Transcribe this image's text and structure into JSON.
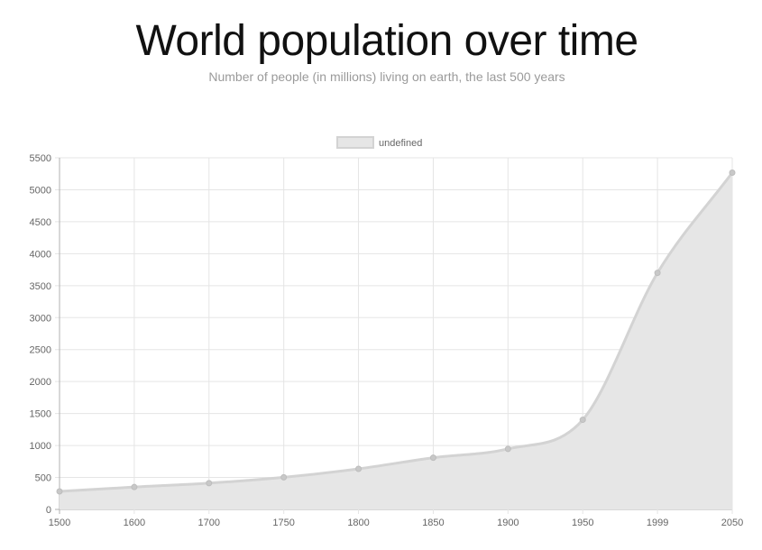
{
  "title": "World population over time",
  "subtitle": "Number of people (in millions) living on earth, the last 500 years",
  "chart_data": {
    "type": "area",
    "title": "World population over time",
    "subtitle": "Number of people (in millions) living on earth, the last 500 years",
    "categories": [
      "1500",
      "1600",
      "1700",
      "1750",
      "1800",
      "1850",
      "1900",
      "1950",
      "1999",
      "2050"
    ],
    "series": [
      {
        "name": "undefined",
        "values": [
          282,
          350,
          411,
          502,
          635,
          809,
          947,
          1402,
          3700,
          5267
        ]
      }
    ],
    "ylim": [
      0,
      5500
    ],
    "y_ticks": [
      0,
      500,
      1000,
      1500,
      2000,
      2500,
      3000,
      3500,
      4000,
      4500,
      5000,
      5500
    ],
    "grid": true,
    "legend": "top-center",
    "colors": {
      "fill": "#e6e6e6",
      "line": "#d3d3d3",
      "point": "#c8c8c8",
      "grid": "#e5e5e5",
      "axis": "#b0b0b0"
    }
  }
}
